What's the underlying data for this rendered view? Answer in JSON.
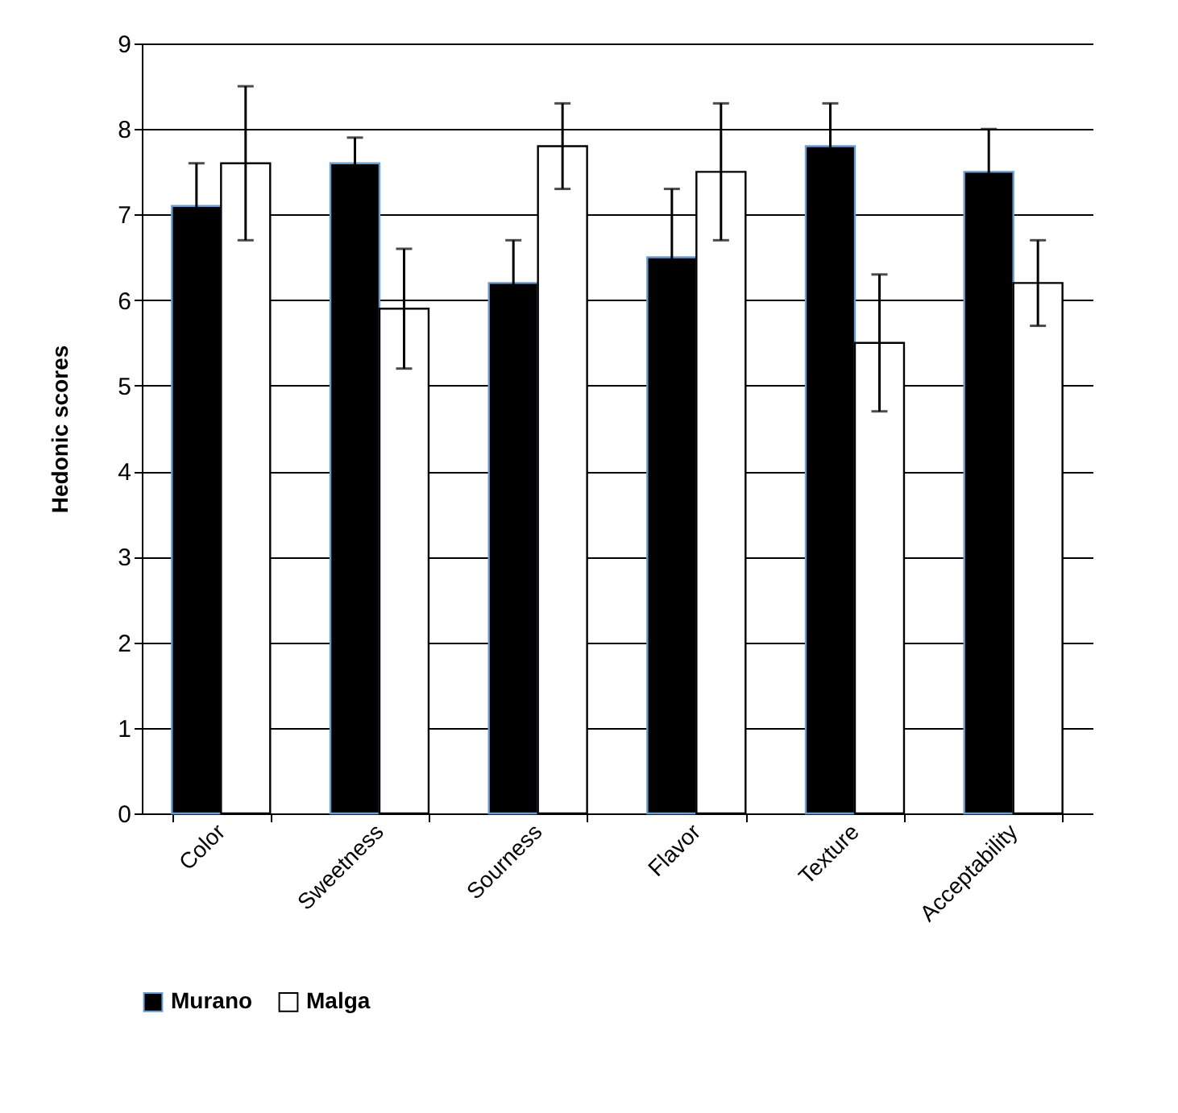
{
  "chart_data": {
    "type": "bar",
    "ylabel": "Hedonic scores",
    "categories": [
      "Color",
      "Sweetness",
      "Sourness",
      "Flavor",
      "Texture",
      "Acceptability"
    ],
    "series": [
      {
        "name": "Murano",
        "color": "#000000",
        "values": [
          7.1,
          7.6,
          6.2,
          6.5,
          7.8,
          7.5
        ],
        "errors": [
          0.5,
          0.3,
          0.5,
          0.8,
          0.5,
          0.5
        ]
      },
      {
        "name": "Malga",
        "color": "#ffffff",
        "values": [
          7.6,
          5.9,
          7.8,
          7.5,
          5.5,
          6.2
        ],
        "errors": [
          0.9,
          0.7,
          0.5,
          0.8,
          0.8,
          0.5
        ]
      }
    ],
    "ylim": [
      0,
      9
    ],
    "yticks": [
      0,
      1,
      2,
      3,
      4,
      5,
      6,
      7,
      8,
      9
    ],
    "grid": "y",
    "legend": "bottom"
  }
}
